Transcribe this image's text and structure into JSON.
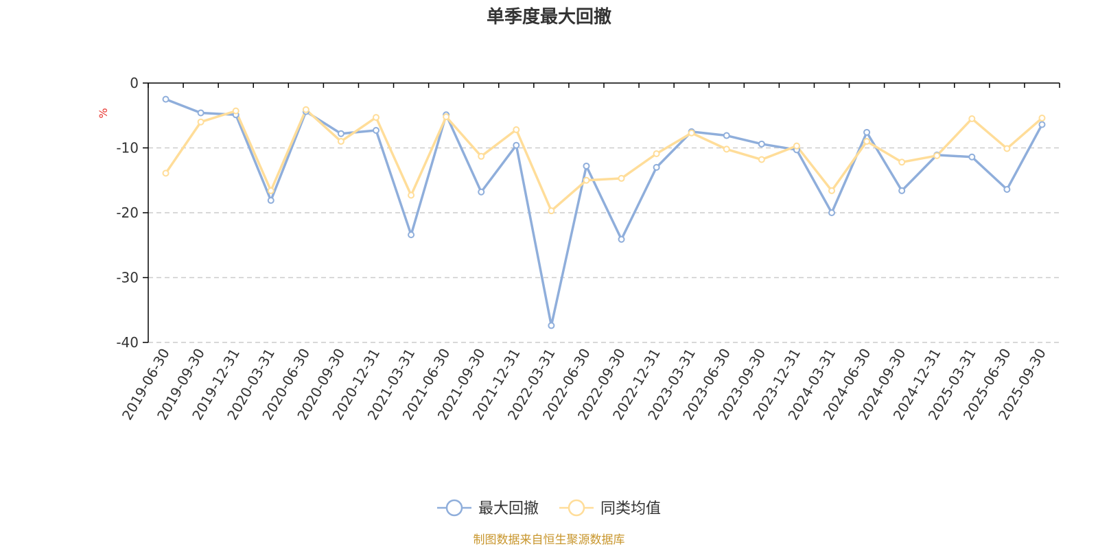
{
  "chart_data": {
    "type": "line",
    "title": "单季度最大回撤",
    "ylabel": "%",
    "ylim": [
      -40,
      0
    ],
    "yticks": [
      0,
      -10,
      -20,
      -30,
      -40
    ],
    "grid": true,
    "legend_position": "bottom-center",
    "categories": [
      "2019-06-30",
      "2019-09-30",
      "2019-12-31",
      "2020-03-31",
      "2020-06-30",
      "2020-09-30",
      "2020-12-31",
      "2021-03-31",
      "2021-06-30",
      "2021-09-30",
      "2021-12-31",
      "2022-03-31",
      "2022-06-30",
      "2022-09-30",
      "2022-12-31",
      "2023-03-31",
      "2023-06-30",
      "2023-09-30",
      "2023-12-31",
      "2024-03-31",
      "2024-06-30",
      "2024-09-30",
      "2024-12-31",
      "2025-03-31",
      "2025-06-30",
      "2025-09-30"
    ],
    "series": [
      {
        "name": "最大回撤",
        "color": "#8FAEDB",
        "values": [
          -2.5,
          -4.6,
          -4.9,
          -18.1,
          -4.4,
          -7.8,
          -7.3,
          -23.4,
          -4.9,
          -16.8,
          -9.6,
          -37.4,
          -12.8,
          -24.1,
          -13.0,
          -7.5,
          -8.1,
          -9.4,
          -10.3,
          -20.0,
          -7.6,
          -16.6,
          -11.1,
          -11.4,
          -16.4,
          -6.4
        ]
      },
      {
        "name": "同类均值",
        "color": "#FFDD99",
        "values": [
          -13.9,
          -6.0,
          -4.3,
          -16.6,
          -4.1,
          -9.0,
          -5.3,
          -17.3,
          -5.2,
          -11.3,
          -7.2,
          -19.7,
          -15.0,
          -14.7,
          -10.9,
          -7.7,
          -10.2,
          -11.8,
          -9.7,
          -16.6,
          -9.0,
          -12.2,
          -11.2,
          -5.5,
          -10.1,
          -5.4
        ]
      }
    ]
  },
  "source_text": "制图数据来自恒生聚源数据库",
  "colors": {
    "axis": "#000000",
    "grid": "#cccccc",
    "unit": "#e8352f",
    "source": "#c8962d"
  }
}
